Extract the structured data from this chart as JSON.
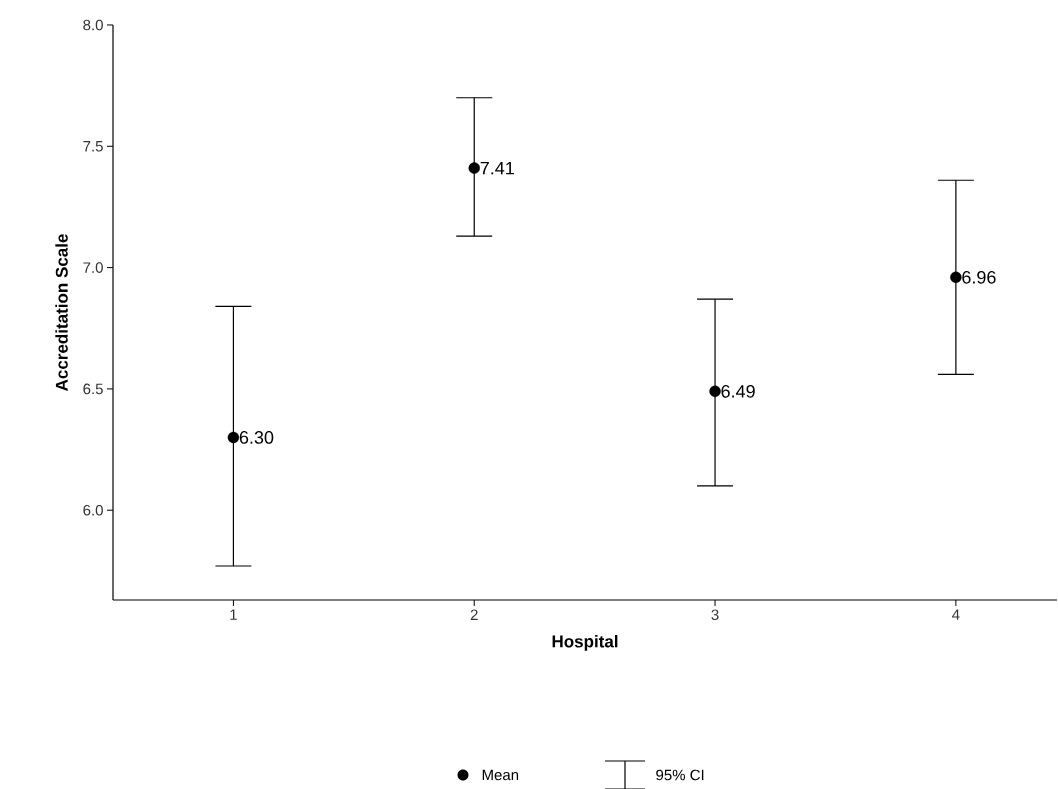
{
  "chart_data": {
    "type": "scatter",
    "xlabel": "Hospital",
    "ylabel": "Accreditation Scale",
    "x": [
      1,
      2,
      3,
      4
    ],
    "xlim": [
      0.5,
      4.42
    ],
    "xticks": [
      1,
      2,
      3,
      4
    ],
    "ylim": [
      5.63,
      8.0
    ],
    "yticks": [
      {
        "value": 6.0,
        "label": "6.0"
      },
      {
        "value": 6.5,
        "label": "6.5"
      },
      {
        "value": 7.0,
        "label": "7.0"
      },
      {
        "value": 7.5,
        "label": "7.5"
      },
      {
        "value": 8.0,
        "label": "8.0"
      }
    ],
    "series": [
      {
        "name": "Mean",
        "color": "#000000",
        "values": [
          6.3,
          7.41,
          6.49,
          6.96
        ],
        "errors": [
          [
            5.77,
            6.84
          ],
          [
            7.13,
            7.7
          ],
          [
            6.1,
            6.87
          ],
          [
            6.56,
            7.36
          ]
        ],
        "value_labels": [
          "6.30",
          "7.41",
          "6.49",
          "6.96"
        ]
      }
    ],
    "annotations": [
      "95% CI"
    ],
    "marker": "circle",
    "legend": "bottom",
    "grid": false
  }
}
